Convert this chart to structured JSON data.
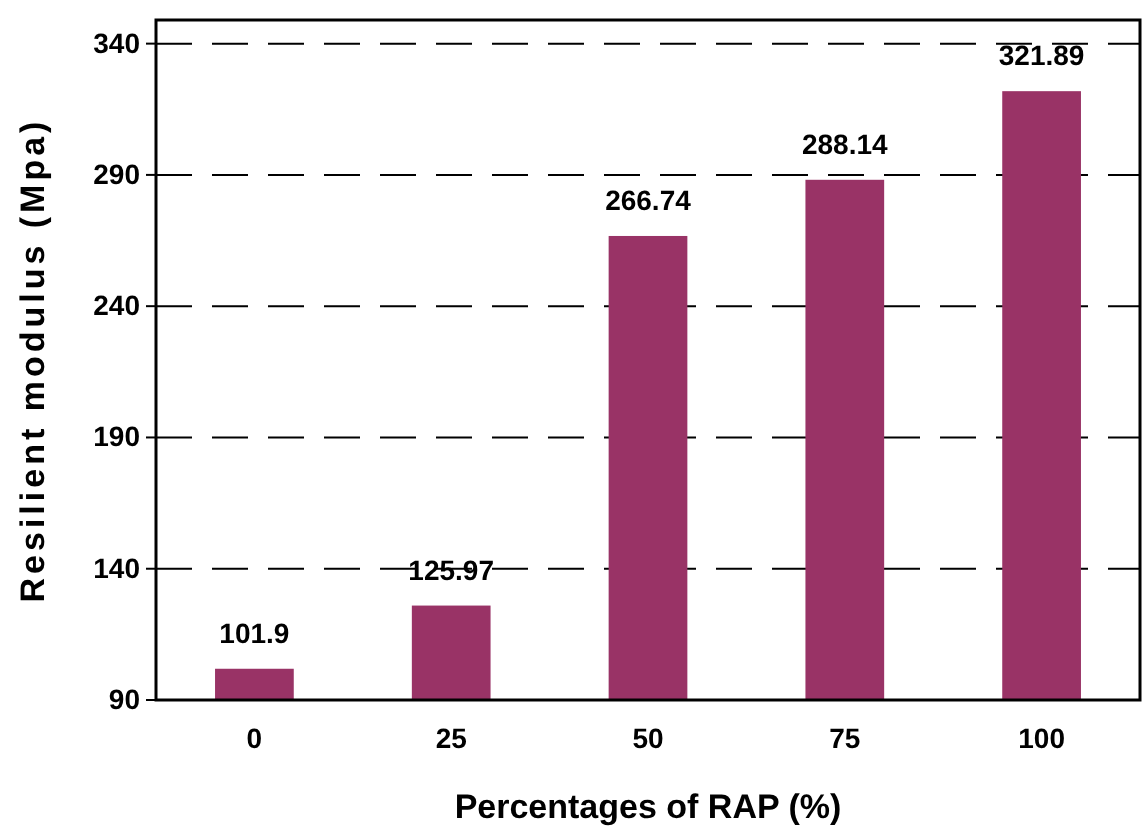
{
  "chart_data": {
    "type": "bar",
    "xlabel": "Percentages of RAP (%)",
    "ylabel": "Resilient modulus (Mpa)",
    "categories": [
      "0",
      "25",
      "50",
      "75",
      "100"
    ],
    "values": [
      101.9,
      125.97,
      266.74,
      288.14,
      321.89
    ],
    "color": "#993366",
    "ylim": [
      90,
      349
    ],
    "yticks": [
      90,
      140,
      190,
      240,
      290,
      340
    ],
    "grid": "y",
    "data_labels": true
  }
}
